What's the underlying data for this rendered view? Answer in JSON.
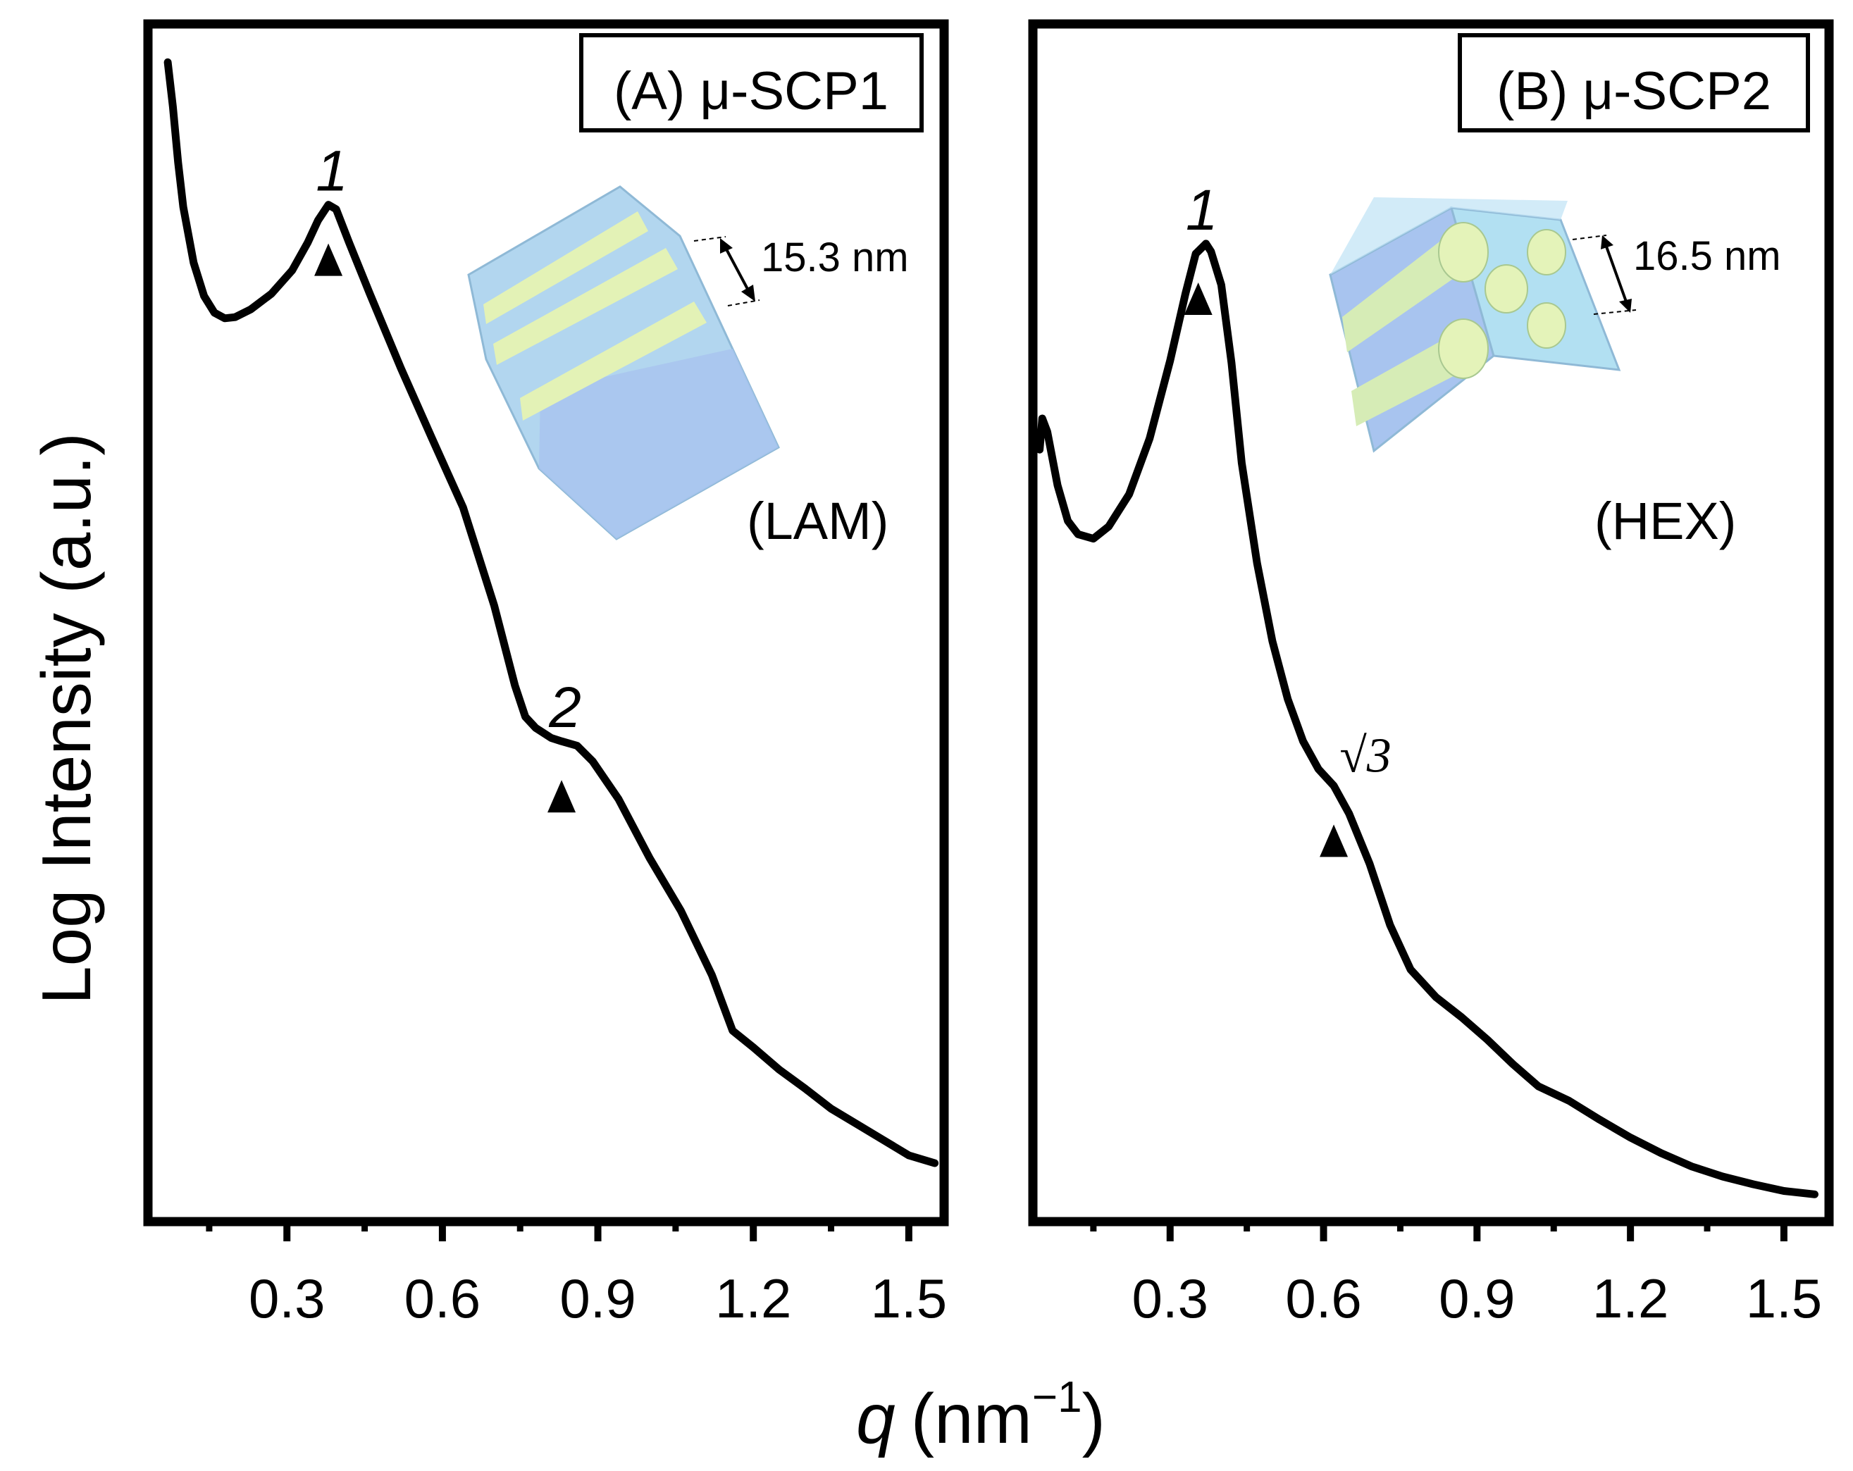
{
  "figure": {
    "y_axis_label": "Log Intensity (a.u.)",
    "x_axis_label_symbol": "q",
    "x_axis_label_unit": "(nm",
    "x_axis_label_exponent": "−1",
    "x_axis_label_close": ")"
  },
  "chart_data": [
    {
      "type": "line",
      "panel_label": "(A) μ-SCP1",
      "structure_label": "(LAM)",
      "scale_annotation": "15.3 nm",
      "xlabel": "q (nm−1)",
      "ylabel": "Log Intensity (a.u.)",
      "xlim": [
        0.04,
        1.56
      ],
      "ylim": [
        0,
        1
      ],
      "y_ticks_shown": false,
      "x_ticks": [
        0.3,
        0.6,
        0.9,
        1.2,
        1.5
      ],
      "x_tick_labels": [
        "0.3",
        "0.6",
        "0.9",
        "1.2",
        "1.5"
      ],
      "x_minor_ticks": [
        0.15,
        0.45,
        0.75,
        1.05,
        1.35
      ],
      "peak_markers": [
        {
          "q": 0.38,
          "label": "1",
          "curve_y": 0.892
        },
        {
          "q": 0.83,
          "label": "2",
          "curve_y": 0.41
        }
      ],
      "series": [
        {
          "name": "μ-SCP1",
          "points": [
            [
              0.07,
              1.02
            ],
            [
              0.08,
              0.98
            ],
            [
              0.09,
              0.93
            ],
            [
              0.1,
              0.89
            ],
            [
              0.12,
              0.84
            ],
            [
              0.14,
              0.81
            ],
            [
              0.16,
              0.795
            ],
            [
              0.18,
              0.79
            ],
            [
              0.2,
              0.791
            ],
            [
              0.23,
              0.798
            ],
            [
              0.27,
              0.812
            ],
            [
              0.31,
              0.833
            ],
            [
              0.34,
              0.858
            ],
            [
              0.36,
              0.878
            ],
            [
              0.38,
              0.892
            ],
            [
              0.395,
              0.888
            ],
            [
              0.42,
              0.858
            ],
            [
              0.46,
              0.812
            ],
            [
              0.52,
              0.745
            ],
            [
              0.58,
              0.682
            ],
            [
              0.64,
              0.62
            ],
            [
              0.7,
              0.532
            ],
            [
              0.74,
              0.46
            ],
            [
              0.76,
              0.432
            ],
            [
              0.78,
              0.422
            ],
            [
              0.81,
              0.413
            ],
            [
              0.83,
              0.41
            ],
            [
              0.86,
              0.406
            ],
            [
              0.89,
              0.392
            ],
            [
              0.94,
              0.358
            ],
            [
              1.0,
              0.305
            ],
            [
              1.06,
              0.258
            ],
            [
              1.12,
              0.2
            ],
            [
              1.16,
              0.15
            ],
            [
              1.2,
              0.135
            ],
            [
              1.25,
              0.115
            ],
            [
              1.3,
              0.098
            ],
            [
              1.35,
              0.08
            ],
            [
              1.4,
              0.066
            ],
            [
              1.45,
              0.052
            ],
            [
              1.5,
              0.038
            ],
            [
              1.55,
              0.031
            ]
          ]
        }
      ]
    },
    {
      "type": "line",
      "panel_label": "(B) μ-SCP2",
      "structure_label": "(HEX)",
      "scale_annotation": "16.5 nm",
      "xlabel": "q (nm−1)",
      "ylabel": "Log Intensity (a.u.)",
      "xlim": [
        0.04,
        1.58
      ],
      "ylim": [
        0,
        1
      ],
      "y_ticks_shown": false,
      "x_ticks": [
        0.3,
        0.6,
        0.9,
        1.2,
        1.5
      ],
      "x_tick_labels": [
        "0.3",
        "0.6",
        "0.9",
        "1.2",
        "1.5"
      ],
      "x_minor_ticks": [
        0.15,
        0.45,
        0.75,
        1.05,
        1.35
      ],
      "peak_markers": [
        {
          "q": 0.355,
          "label": "1",
          "curve_y": 0.857
        },
        {
          "q": 0.62,
          "label": "√3",
          "curve_y": 0.37
        }
      ],
      "series": [
        {
          "name": "μ-SCP2",
          "points": [
            [
              0.045,
              0.672
            ],
            [
              0.05,
              0.7
            ],
            [
              0.06,
              0.688
            ],
            [
              0.08,
              0.64
            ],
            [
              0.1,
              0.608
            ],
            [
              0.12,
              0.596
            ],
            [
              0.15,
              0.592
            ],
            [
              0.18,
              0.603
            ],
            [
              0.22,
              0.632
            ],
            [
              0.26,
              0.682
            ],
            [
              0.3,
              0.752
            ],
            [
              0.33,
              0.812
            ],
            [
              0.35,
              0.848
            ],
            [
              0.37,
              0.857
            ],
            [
              0.38,
              0.85
            ],
            [
              0.4,
              0.82
            ],
            [
              0.42,
              0.75
            ],
            [
              0.44,
              0.66
            ],
            [
              0.47,
              0.57
            ],
            [
              0.5,
              0.5
            ],
            [
              0.53,
              0.448
            ],
            [
              0.56,
              0.41
            ],
            [
              0.59,
              0.385
            ],
            [
              0.62,
              0.37
            ],
            [
              0.65,
              0.345
            ],
            [
              0.69,
              0.3
            ],
            [
              0.73,
              0.245
            ],
            [
              0.77,
              0.205
            ],
            [
              0.82,
              0.18
            ],
            [
              0.87,
              0.162
            ],
            [
              0.92,
              0.142
            ],
            [
              0.97,
              0.12
            ],
            [
              1.02,
              0.1
            ],
            [
              1.08,
              0.087
            ],
            [
              1.14,
              0.07
            ],
            [
              1.2,
              0.054
            ],
            [
              1.26,
              0.04
            ],
            [
              1.32,
              0.028
            ],
            [
              1.38,
              0.019
            ],
            [
              1.44,
              0.012
            ],
            [
              1.5,
              0.006
            ],
            [
              1.56,
              0.003
            ]
          ]
        }
      ]
    }
  ]
}
